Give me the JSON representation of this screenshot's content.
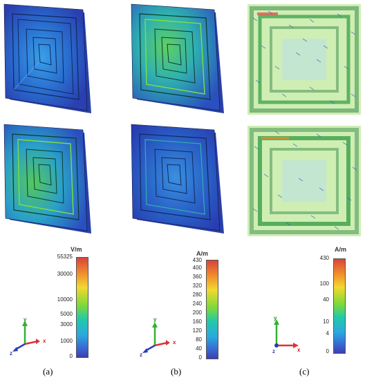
{
  "captions": {
    "a": "(a)",
    "b": "(b)",
    "c": "(c)"
  },
  "legend_a": {
    "unit": "V/m",
    "ticks": [
      "55325",
      "30000",
      "10000",
      "5000",
      "3000",
      "1000",
      "0"
    ]
  },
  "legend_b": {
    "unit": "A/m",
    "ticks": [
      "430",
      "400",
      "360",
      "320",
      "280",
      "240",
      "200",
      "160",
      "120",
      "80",
      "40",
      "0"
    ]
  },
  "legend_c": {
    "unit": "A/m",
    "ticks": [
      "430",
      "100",
      "40",
      "10",
      "4",
      "0"
    ]
  },
  "axes": {
    "x": "x",
    "y": "y",
    "z": "z"
  },
  "colors": {
    "low": "#3b3fb0",
    "mid": "#7dd93a",
    "high": "#d9443a",
    "field_bg": "#cfeeb4"
  }
}
